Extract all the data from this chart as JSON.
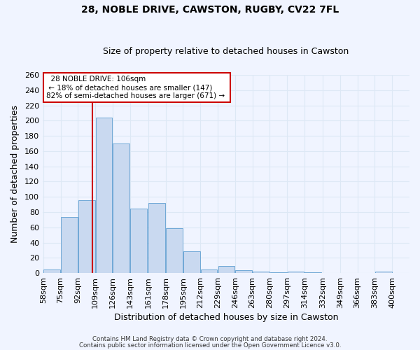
{
  "title1": "28, NOBLE DRIVE, CAWSTON, RUGBY, CV22 7FL",
  "title2": "Size of property relative to detached houses in Cawston",
  "xlabel": "Distribution of detached houses by size in Cawston",
  "ylabel": "Number of detached properties",
  "bar_left_edges": [
    58,
    75,
    92,
    109,
    126,
    143,
    161,
    178,
    195,
    212,
    229,
    246,
    263,
    280,
    297,
    314,
    332,
    349,
    366,
    383
  ],
  "bar_widths": [
    17,
    17,
    17,
    17,
    17,
    17,
    17,
    17,
    17,
    17,
    17,
    17,
    17,
    17,
    17,
    17,
    17,
    17,
    17,
    17
  ],
  "bar_heights": [
    5,
    74,
    96,
    204,
    170,
    85,
    92,
    59,
    29,
    5,
    9,
    4,
    2,
    1,
    2,
    1,
    0,
    0,
    0,
    2
  ],
  "bar_color": "#c9d9f0",
  "bar_edge_color": "#6fa8d6",
  "x_tick_labels": [
    "58sqm",
    "75sqm",
    "92sqm",
    "109sqm",
    "126sqm",
    "143sqm",
    "161sqm",
    "178sqm",
    "195sqm",
    "212sqm",
    "229sqm",
    "246sqm",
    "263sqm",
    "280sqm",
    "297sqm",
    "314sqm",
    "332sqm",
    "349sqm",
    "366sqm",
    "383sqm",
    "400sqm"
  ],
  "ylim": [
    0,
    260
  ],
  "yticks": [
    0,
    20,
    40,
    60,
    80,
    100,
    120,
    140,
    160,
    180,
    200,
    220,
    240,
    260
  ],
  "vline_x": 106,
  "vline_color": "#cc0000",
  "annotation_title": "28 NOBLE DRIVE: 106sqm",
  "annotation_line1": "← 18% of detached houses are smaller (147)",
  "annotation_line2": "82% of semi-detached houses are larger (671) →",
  "annotation_box_color": "#ffffff",
  "annotation_box_edge_color": "#cc0000",
  "grid_color": "#dde8f5",
  "background_color": "#f0f4ff",
  "footer1": "Contains HM Land Registry data © Crown copyright and database right 2024.",
  "footer2": "Contains public sector information licensed under the Open Government Licence v3.0."
}
